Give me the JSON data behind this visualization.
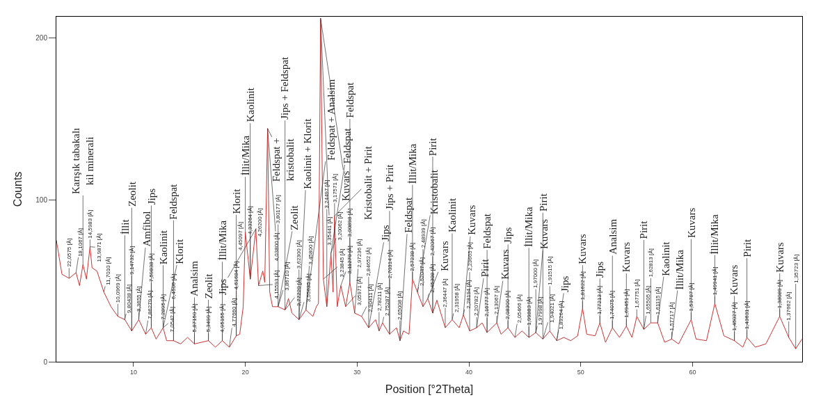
{
  "chart_data": {
    "type": "line",
    "xlabel": "Position [°2Theta]",
    "ylabel": "Counts",
    "xlim": [
      3.1,
      69.8
    ],
    "xticks": [
      10,
      20,
      30,
      40,
      50,
      60
    ],
    "ylim": [
      0,
      213
    ],
    "yticks": [
      0,
      100,
      200
    ],
    "marker": "none",
    "line_style": "solid",
    "series": [
      {
        "color": "#cc3333",
        "x": [
          3.1,
          3.6,
          4.24,
          4.86,
          5.17,
          5.48,
          5.79,
          6.11,
          6.29,
          6.73,
          7.35,
          7.98,
          8.6,
          9.22,
          9.84,
          10.47,
          11.09,
          11.59,
          12.02,
          12.65,
          12.96,
          13.58,
          14.21,
          14.83,
          15.45,
          16.7,
          17.32,
          17.94,
          18.57,
          19.19,
          19.5,
          19.81,
          20.0,
          20.44,
          20.94,
          21.18,
          21.56,
          21.74,
          21.99,
          22.18,
          22.43,
          22.93,
          23.55,
          23.86,
          24.17,
          24.8,
          25.42,
          26.04,
          26.35,
          26.54,
          26.73,
          26.98,
          27.29,
          27.66,
          27.85,
          27.98,
          28.22,
          28.54,
          28.97,
          29.35,
          29.78,
          30.4,
          31.03,
          31.65,
          31.96,
          32.27,
          32.9,
          33.52,
          33.83,
          34.14,
          34.64,
          34.95,
          35.39,
          35.89,
          36.32,
          36.76,
          37.13,
          37.88,
          38.5,
          39.13,
          39.5,
          40.06,
          40.69,
          41.18,
          41.62,
          42.49,
          42.87,
          43.49,
          44.11,
          44.74,
          45.36,
          45.98,
          46.61,
          47.23,
          47.85,
          48.47,
          49.1,
          49.72,
          50.16,
          50.53,
          51.28,
          51.71,
          52.21,
          52.83,
          53.46,
          54.08,
          54.58,
          55.01,
          55.64,
          56.26,
          56.88,
          57.5,
          58.13,
          58.75,
          59.87,
          60.31,
          61.24,
          61.99,
          62.8,
          63.74,
          64.49,
          64.86,
          65.61,
          66.55,
          67.79,
          68.6,
          69.22,
          69.78
        ],
        "values": [
          75,
          54,
          51.5,
          55,
          47,
          60,
          51,
          71,
          58,
          56,
          43,
          34,
          28,
          26,
          19,
          26,
          17,
          21,
          14,
          21,
          13,
          13,
          11,
          15,
          11,
          13,
          9,
          13,
          9,
          16,
          17,
          34,
          80,
          51,
          82,
          47,
          56,
          49,
          144,
          43,
          34,
          34,
          32,
          39,
          30,
          26,
          32,
          28,
          34,
          36,
          212,
          51,
          34,
          67,
          43,
          90,
          34,
          47,
          34,
          49,
          30,
          28,
          21,
          26,
          19,
          24,
          17,
          21,
          13,
          19,
          17,
          51,
          43,
          34,
          39,
          30,
          38,
          21,
          26,
          21,
          29,
          19,
          21,
          24,
          18,
          24,
          17,
          21,
          15,
          19,
          15,
          18,
          14,
          19,
          13,
          15,
          13,
          16,
          33,
          17,
          16,
          24,
          12,
          21,
          15,
          22,
          15,
          28,
          20,
          24,
          24,
          12,
          14,
          11,
          26,
          14,
          13,
          36,
          16,
          13,
          9,
          15,
          9,
          11,
          28,
          15,
          8,
          14
        ]
      }
    ],
    "annotations": [
      {
        "text": "22,0575 [Å]",
        "x": 4.24,
        "y": 51.5
      },
      {
        "text": "18,1067 [Å]",
        "x": 4.86,
        "y": 55
      },
      {
        "text": "14,5983 [Å]",
        "x": 6.11,
        "y": 71
      },
      {
        "text": "13,9871 [Å]",
        "x": 6.11,
        "y": 71
      },
      {
        "text": "Karışık tabakalı\nkil minerali",
        "x": 5.48,
        "y": 60
      },
      {
        "text": "11,7010 [Å]",
        "x": 7.35,
        "y": 43
      },
      {
        "text": "10,0969 [Å]",
        "x": 8.6,
        "y": 28
      },
      {
        "text": "9,80438 [Å]",
        "x": 9.22,
        "y": 26
      },
      {
        "text": "9,14732 [Å]",
        "x": 9.84,
        "y": 19
      },
      {
        "text": "İllit",
        "x": 9.22,
        "y": 26
      },
      {
        "text": "8,3655 [Å]",
        "x": 10.47,
        "y": 26
      },
      {
        "text": "Amfibol",
        "x": 10.47,
        "y": 26
      },
      {
        "text": "Zeolit",
        "x": 9.84,
        "y": 19
      },
      {
        "text": "7,86279 [Å]",
        "x": 11.09,
        "y": 17
      },
      {
        "text": "7,59838 [Å]",
        "x": 11.59,
        "y": 21
      },
      {
        "text": "Jips",
        "x": 11.59,
        "y": 21
      },
      {
        "text": "7,2895 [Å]",
        "x": 12.65,
        "y": 21
      },
      {
        "text": "7,0542 [Å]",
        "x": 12.65,
        "y": 21
      },
      {
        "text": "Kaolinit",
        "x": 12.65,
        "y": 21
      },
      {
        "text": "Klorit",
        "x": 12.65,
        "y": 21
      },
      {
        "text": "6,4506 [Å]",
        "x": 13.58,
        "y": 13
      },
      {
        "text": "Feldspat",
        "x": 13.58,
        "y": 13
      },
      {
        "text": "5,87150 [Å]",
        "x": 15.45,
        "y": 11
      },
      {
        "text": "Analsim",
        "x": 15.45,
        "y": 11
      },
      {
        "text": "5,3499 [Å]",
        "x": 16.7,
        "y": 13
      },
      {
        "text": "Zeolit",
        "x": 16.7,
        "y": 13
      },
      {
        "text": "4,95155 [Å]",
        "x": 17.94,
        "y": 13
      },
      {
        "text": "İllit/Mika",
        "x": 17.94,
        "y": 13
      },
      {
        "text": "4,77660 [Å]",
        "x": 18.57,
        "y": 9
      },
      {
        "text": "Klorit",
        "x": 19.19,
        "y": 16
      },
      {
        "text": "4,61684 [Å]",
        "x": 19.19,
        "y": 16
      },
      {
        "text": "İllit/Mika",
        "x": 20.0,
        "y": 80
      },
      {
        "text": "4,45097 [Å]",
        "x": 20.0,
        "y": 80
      },
      {
        "text": "4,33264 [Å]",
        "x": 20.44,
        "y": 51
      },
      {
        "text": "Kaolinit",
        "x": 20.44,
        "y": 51
      },
      {
        "text": "4,26200 [Å]",
        "x": 20.94,
        "y": 82
      },
      {
        "text": "4,15593 [Å]",
        "x": 21.18,
        "y": 47
      },
      {
        "text": "Jips",
        "x": 20.94,
        "y": 82
      },
      {
        "text": "Feldspat +\nkristobalit",
        "x": 21.99,
        "y": 144
      },
      {
        "text": "4,03800 [Å]",
        "x": 21.99,
        "y": 144
      },
      {
        "text": "3,86710 [Å]",
        "x": 22.93,
        "y": 34
      },
      {
        "text": "3,80177 [Å]",
        "x": 22.93,
        "y": 34
      },
      {
        "text": "Zeolit",
        "x": 22.93,
        "y": 34
      },
      {
        "text": "3,77220 [Å]",
        "x": 23.55,
        "y": 32
      },
      {
        "text": "Jips + Feldspat",
        "x": 23.55,
        "y": 32
      },
      {
        "text": "3,62300 [Å]",
        "x": 24.8,
        "y": 26
      },
      {
        "text": "3,55635 [Å]",
        "x": 24.8,
        "y": 26
      },
      {
        "text": "Kaolinit + Klorit",
        "x": 24.8,
        "y": 26
      },
      {
        "text": "3,45800 [Å]",
        "x": 25.42,
        "y": 32
      },
      {
        "text": "Feldspat + Analsim",
        "x": 25.42,
        "y": 32
      },
      {
        "text": "Kuvars",
        "x": 26.73,
        "y": 212
      },
      {
        "text": "3,35441 [Å]",
        "x": 26.73,
        "y": 212
      },
      {
        "text": "3,23845 [Å]",
        "x": 26.98,
        "y": 51
      },
      {
        "text": "3,24497 [Å]",
        "x": 27.29,
        "y": 34
      },
      {
        "text": "3,20062 [Å]",
        "x": 27.66,
        "y": 67
      },
      {
        "text": "Feldspat",
        "x": 27.66,
        "y": 67
      },
      {
        "text": "3,17571 [Å]",
        "x": 27.98,
        "y": 90
      },
      {
        "text": "3,11270 [Å]",
        "x": 28.54,
        "y": 47
      },
      {
        "text": "3,05971 [Å]",
        "x": 28.97,
        "y": 34
      },
      {
        "text": "Kristobalit + Pirit",
        "x": 27.98,
        "y": 90
      },
      {
        "text": "3,00898 [Å]",
        "x": 29.35,
        "y": 49
      },
      {
        "text": "2,97236 [Å]",
        "x": 29.78,
        "y": 30
      },
      {
        "text": "Feldspat",
        "x": 29.35,
        "y": 49
      },
      {
        "text": "2,90411 [Å]",
        "x": 30.4,
        "y": 28
      },
      {
        "text": "2,84652 [Å]",
        "x": 31.03,
        "y": 21
      },
      {
        "text": "Jips",
        "x": 31.03,
        "y": 21
      },
      {
        "text": "2,78211 [Å]",
        "x": 31.96,
        "y": 19
      },
      {
        "text": "2,75287 [Å]",
        "x": 32.27,
        "y": 24
      },
      {
        "text": "2,70314 [Å]",
        "x": 32.9,
        "y": 17
      },
      {
        "text": "Jips + Pirit",
        "x": 32.9,
        "y": 17
      },
      {
        "text": "2,65008 [Å]",
        "x": 33.83,
        "y": 13
      },
      {
        "text": "Feldspat",
        "x": 33.83,
        "y": 13
      },
      {
        "text": "İllit/Mika",
        "x": 34.95,
        "y": 51
      },
      {
        "text": "2,57238 [Å]",
        "x": 34.95,
        "y": 51
      },
      {
        "text": "2,52047 [Å]",
        "x": 35.39,
        "y": 43
      },
      {
        "text": "2,48939 [Å]",
        "x": 35.89,
        "y": 34
      },
      {
        "text": "Kristobalit",
        "x": 35.39,
        "y": 43
      },
      {
        "text": "2,45308 [Å]",
        "x": 36.32,
        "y": 39
      },
      {
        "text": "Kuvars",
        "x": 36.32,
        "y": 39
      },
      {
        "text": "2,42067 [Å]",
        "x": 36.76,
        "y": 30
      },
      {
        "text": "Pirit",
        "x": 36.76,
        "y": 30
      },
      {
        "text": "2,36447 [Å]",
        "x": 37.88,
        "y": 21
      },
      {
        "text": "Kaolinit",
        "x": 38.5,
        "y": 26
      },
      {
        "text": "2,31958 [Å]",
        "x": 38.5,
        "y": 26
      },
      {
        "text": "2,28194 [Å]",
        "x": 39.5,
        "y": 29
      },
      {
        "text": "Kuvars",
        "x": 39.5,
        "y": 29
      },
      {
        "text": "2,23665 [Å]",
        "x": 40.06,
        "y": 19
      },
      {
        "text": "2,20782 [Å]",
        "x": 40.69,
        "y": 21
      },
      {
        "text": "Pirit",
        "x": 40.69,
        "y": 21
      },
      {
        "text": "2,16777 [Å]",
        "x": 41.62,
        "y": 18
      },
      {
        "text": "2,13067 [Å]",
        "x": 42.49,
        "y": 24
      },
      {
        "text": "Feldspat",
        "x": 41.62,
        "y": 18
      },
      {
        "text": "Kuvars",
        "x": 42.49,
        "y": 24
      },
      {
        "text": "2,08300 [Å]",
        "x": 43.49,
        "y": 21
      },
      {
        "text": "2,05466 [Å]",
        "x": 44.11,
        "y": 15
      },
      {
        "text": "Jips",
        "x": 43.49,
        "y": 21
      },
      {
        "text": "İllit/Mika",
        "x": 45.36,
        "y": 15
      },
      {
        "text": "1,99883 [Å]",
        "x": 45.36,
        "y": 15
      },
      {
        "text": "1,97998 [Å]",
        "x": 45.98,
        "y": 18
      },
      {
        "text": "1,97000 [Å]",
        "x": 45.98,
        "y": 18
      },
      {
        "text": "Kuvars",
        "x": 45.98,
        "y": 18
      },
      {
        "text": "1,94021 [Å]",
        "x": 46.61,
        "y": 14
      },
      {
        "text": "1,91515 [Å]",
        "x": 47.23,
        "y": 19
      },
      {
        "text": "Pirit",
        "x": 46.61,
        "y": 14
      },
      {
        "text": "1,89264 [Å]",
        "x": 47.85,
        "y": 13
      },
      {
        "text": "Jips",
        "x": 47.85,
        "y": 13
      },
      {
        "text": "1,81622 [Å]",
        "x": 50.16,
        "y": 33
      },
      {
        "text": "Kuvars",
        "x": 50.16,
        "y": 33
      },
      {
        "text": "1,77213 [Å]",
        "x": 51.71,
        "y": 24
      },
      {
        "text": "Jips",
        "x": 51.71,
        "y": 24
      },
      {
        "text": "1,74075 [Å]",
        "x": 52.83,
        "y": 21
      },
      {
        "text": "Analsim",
        "x": 52.83,
        "y": 21
      },
      {
        "text": "1,69451 [Å]",
        "x": 54.08,
        "y": 22
      },
      {
        "text": "Kuvars",
        "x": 54.08,
        "y": 22
      },
      {
        "text": "1,67751 [Å]",
        "x": 55.01,
        "y": 28
      },
      {
        "text": "1,65505 [Å]",
        "x": 55.64,
        "y": 20
      },
      {
        "text": "Pirit",
        "x": 55.64,
        "y": 20
      },
      {
        "text": "1,62813 [Å]",
        "x": 56.26,
        "y": 24
      },
      {
        "text": "1,61115 [Å]",
        "x": 56.88,
        "y": 24
      },
      {
        "text": "Kaolinit",
        "x": 56.88,
        "y": 24
      },
      {
        "text": "1,57717 [Å]",
        "x": 58.13,
        "y": 14
      },
      {
        "text": "İllit/Mika",
        "x": 58.13,
        "y": 14
      },
      {
        "text": "1,53787 [Å]",
        "x": 59.87,
        "y": 26
      },
      {
        "text": "Kuvars",
        "x": 59.87,
        "y": 26
      },
      {
        "text": "1,49941 [Å]",
        "x": 61.99,
        "y": 36
      },
      {
        "text": "İllit/Mika",
        "x": 61.99,
        "y": 36
      },
      {
        "text": "1,45027 [Å]",
        "x": 63.74,
        "y": 13
      },
      {
        "text": "Kuvars",
        "x": 63.74,
        "y": 13
      },
      {
        "text": "1,43631 [Å]",
        "x": 64.86,
        "y": 15
      },
      {
        "text": "Pirit",
        "x": 64.86,
        "y": 15
      },
      {
        "text": "1,38089 [Å]",
        "x": 67.79,
        "y": 28
      },
      {
        "text": "1,37662 [Å]",
        "x": 68.6,
        "y": 15
      },
      {
        "text": "Kuvars",
        "x": 67.79,
        "y": 28
      },
      {
        "text": "1,35723 [Å]",
        "x": 69.22,
        "y": 8
      }
    ]
  }
}
